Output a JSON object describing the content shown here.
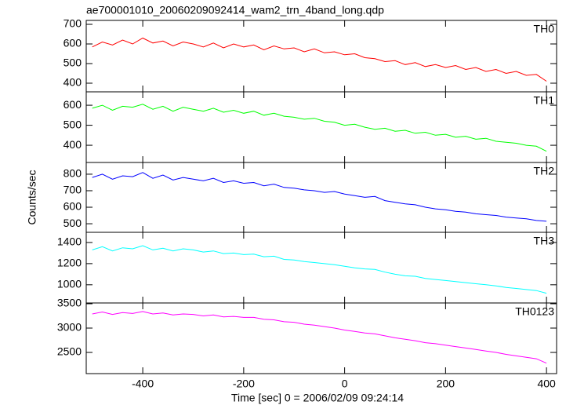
{
  "chart_data": [
    {
      "type": "line",
      "title": "ae700001010_20060209092414_wam2_trn_4band_long.qdp",
      "x": [
        -500,
        -480,
        -460,
        -440,
        -420,
        -400,
        -380,
        -360,
        -340,
        -320,
        -300,
        -280,
        -260,
        -240,
        -220,
        -200,
        -180,
        -160,
        -140,
        -120,
        -100,
        -80,
        -60,
        -40,
        -20,
        0,
        20,
        40,
        60,
        80,
        100,
        120,
        140,
        160,
        180,
        200,
        220,
        240,
        260,
        280,
        300,
        320,
        340,
        360,
        380,
        400
      ],
      "series": [
        {
          "name": "TH0",
          "color": "#ff0000",
          "values": [
            585,
            610,
            595,
            620,
            600,
            630,
            605,
            615,
            590,
            610,
            600,
            585,
            605,
            580,
            600,
            585,
            595,
            570,
            590,
            575,
            580,
            560,
            575,
            555,
            560,
            545,
            550,
            530,
            525,
            510,
            515,
            495,
            505,
            485,
            495,
            480,
            490,
            470,
            480,
            460,
            470,
            450,
            460,
            440,
            445,
            410
          ]
        }
      ],
      "xlim": [
        -512,
        420
      ],
      "xticks": [
        -400,
        -200,
        0,
        200,
        400
      ],
      "ylim": [
        356,
        720
      ],
      "yticks": [
        400,
        500,
        600,
        700
      ]
    },
    {
      "type": "line",
      "x": [
        -500,
        -480,
        -460,
        -440,
        -420,
        -400,
        -380,
        -360,
        -340,
        -320,
        -300,
        -280,
        -260,
        -240,
        -220,
        -200,
        -180,
        -160,
        -140,
        -120,
        -100,
        -80,
        -60,
        -40,
        -20,
        0,
        20,
        40,
        60,
        80,
        100,
        120,
        140,
        160,
        180,
        200,
        220,
        240,
        260,
        280,
        300,
        320,
        340,
        360,
        380,
        400
      ],
      "series": [
        {
          "name": "TH1",
          "color": "#00ff00",
          "values": [
            585,
            600,
            575,
            595,
            590,
            605,
            580,
            595,
            570,
            590,
            580,
            570,
            585,
            565,
            575,
            560,
            570,
            550,
            560,
            545,
            540,
            530,
            535,
            520,
            515,
            500,
            505,
            490,
            480,
            485,
            470,
            475,
            460,
            465,
            450,
            455,
            440,
            445,
            430,
            435,
            420,
            415,
            410,
            400,
            395,
            370
          ]
        }
      ],
      "xlim": [
        -512,
        420
      ],
      "xticks": [
        -400,
        -200,
        0,
        200,
        400
      ],
      "ylim": [
        314,
        667
      ],
      "yticks": [
        400,
        500,
        600
      ]
    },
    {
      "type": "line",
      "y_label": "Counts/sec",
      "x": [
        -500,
        -480,
        -460,
        -440,
        -420,
        -400,
        -380,
        -360,
        -340,
        -320,
        -300,
        -280,
        -260,
        -240,
        -220,
        -200,
        -180,
        -160,
        -140,
        -120,
        -100,
        -80,
        -60,
        -40,
        -20,
        0,
        20,
        40,
        60,
        80,
        100,
        120,
        140,
        160,
        180,
        200,
        220,
        240,
        260,
        280,
        300,
        320,
        340,
        360,
        380,
        400
      ],
      "series": [
        {
          "name": "TH2",
          "color": "#0000ff",
          "values": [
            780,
            800,
            770,
            790,
            785,
            810,
            775,
            795,
            765,
            780,
            770,
            760,
            775,
            750,
            760,
            745,
            750,
            730,
            740,
            720,
            715,
            705,
            700,
            690,
            695,
            680,
            670,
            660,
            665,
            640,
            630,
            620,
            615,
            600,
            590,
            585,
            575,
            570,
            560,
            555,
            550,
            540,
            535,
            530,
            520,
            515
          ]
        }
      ],
      "xlim": [
        -512,
        420
      ],
      "xticks": [
        -400,
        -200,
        0,
        200,
        400
      ],
      "ylim": [
        448,
        871
      ],
      "yticks": [
        500,
        600,
        700,
        800
      ]
    },
    {
      "type": "line",
      "x": [
        -500,
        -480,
        -460,
        -440,
        -420,
        -400,
        -380,
        -360,
        -340,
        -320,
        -300,
        -280,
        -260,
        -240,
        -220,
        -200,
        -180,
        -160,
        -140,
        -120,
        -100,
        -80,
        -60,
        -40,
        -20,
        0,
        20,
        40,
        60,
        80,
        100,
        120,
        140,
        160,
        180,
        200,
        220,
        240,
        260,
        280,
        300,
        320,
        340,
        360,
        380,
        400
      ],
      "series": [
        {
          "name": "TH3",
          "color": "#00ffff",
          "values": [
            1330,
            1360,
            1320,
            1350,
            1340,
            1370,
            1330,
            1345,
            1320,
            1340,
            1330,
            1310,
            1320,
            1295,
            1300,
            1285,
            1290,
            1265,
            1270,
            1240,
            1235,
            1220,
            1210,
            1200,
            1190,
            1175,
            1160,
            1150,
            1145,
            1120,
            1100,
            1085,
            1080,
            1060,
            1050,
            1040,
            1030,
            1020,
            1010,
            1000,
            990,
            975,
            965,
            955,
            945,
            920
          ]
        }
      ],
      "xlim": [
        -512,
        420
      ],
      "xticks": [
        -400,
        -200,
        0,
        200,
        400
      ],
      "ylim": [
        828,
        1496
      ],
      "yticks": [
        1000,
        1200,
        1400
      ]
    },
    {
      "type": "line",
      "x_label": "Time [sec] 0 = 2006/02/09 09:24:14",
      "x": [
        -500,
        -480,
        -460,
        -440,
        -420,
        -400,
        -380,
        -360,
        -340,
        -320,
        -300,
        -280,
        -260,
        -240,
        -220,
        -200,
        -180,
        -160,
        -140,
        -120,
        -100,
        -80,
        -60,
        -40,
        -20,
        0,
        20,
        40,
        60,
        80,
        100,
        120,
        140,
        160,
        180,
        200,
        220,
        240,
        260,
        280,
        300,
        320,
        340,
        360,
        380,
        400
      ],
      "series": [
        {
          "name": "TH0123",
          "color": "#ff00ff",
          "values": [
            3290,
            3330,
            3280,
            3320,
            3300,
            3340,
            3290,
            3310,
            3270,
            3290,
            3280,
            3250,
            3270,
            3230,
            3240,
            3220,
            3220,
            3180,
            3170,
            3130,
            3120,
            3080,
            3060,
            3030,
            3000,
            2960,
            2930,
            2900,
            2880,
            2840,
            2800,
            2770,
            2740,
            2700,
            2680,
            2650,
            2620,
            2590,
            2560,
            2530,
            2500,
            2460,
            2430,
            2400,
            2370,
            2280
          ]
        }
      ],
      "xlim": [
        -512,
        420
      ],
      "xticks": [
        -400,
        -200,
        0,
        200,
        400
      ],
      "ylim": [
        2065,
        3516
      ],
      "yticks": [
        2500,
        3000,
        3500
      ]
    }
  ]
}
